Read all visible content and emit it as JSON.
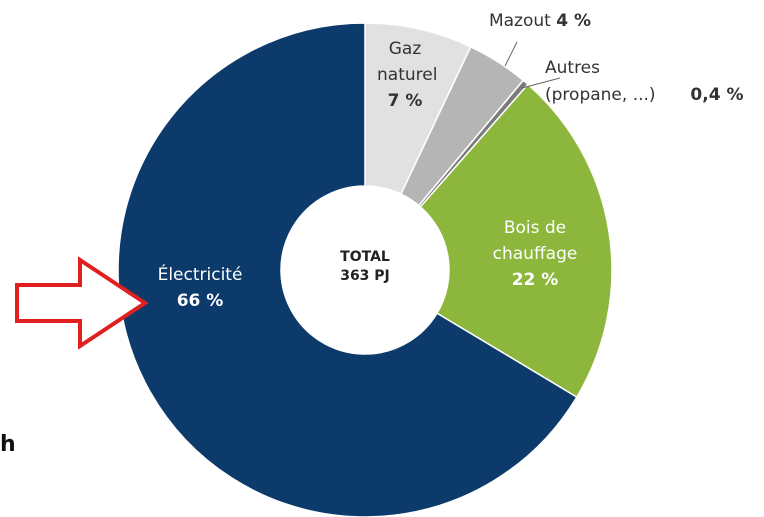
{
  "chart_data": {
    "type": "donut",
    "categories": [
      "Gaz naturel",
      "Mazout",
      "Autres (propane, ...)",
      "Bois de chauffage",
      "Électricité"
    ],
    "values": [
      7,
      4,
      0.4,
      22,
      66
    ],
    "value_labels": [
      "7 %",
      "4 %",
      "0,4 %",
      "22 %",
      "66 %"
    ],
    "colors": [
      "#e1e1e1",
      "#b5b5b5",
      "#7b7b7b",
      "#8db63c",
      "#0b3a6b"
    ],
    "center_label": [
      "TOTAL",
      "363 PJ"
    ]
  },
  "fragment": "h"
}
